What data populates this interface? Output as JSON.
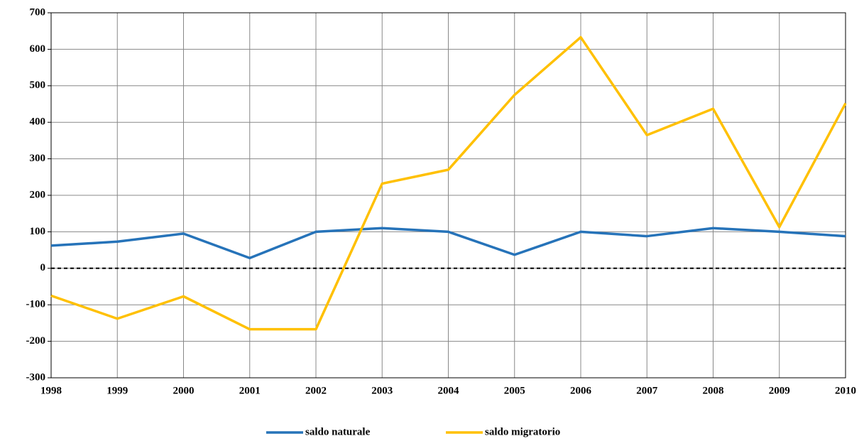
{
  "chart_data": {
    "type": "line",
    "x": [
      1998,
      1999,
      2000,
      2001,
      2002,
      2003,
      2004,
      2005,
      2006,
      2007,
      2008,
      2009,
      2010
    ],
    "series": [
      {
        "name": "saldo naturale",
        "color": "#2673b9",
        "values": [
          62,
          73,
          95,
          28,
          100,
          110,
          100,
          37,
          100,
          88,
          110,
          100,
          88
        ]
      },
      {
        "name": "saldo migratorio",
        "color": "#ffc000",
        "values": [
          -75,
          -138,
          -77,
          -167,
          -167,
          232,
          270,
          475,
          633,
          365,
          437,
          113,
          452
        ]
      }
    ],
    "xlim": [
      1998,
      2010
    ],
    "xticks": [
      1998,
      1999,
      2000,
      2001,
      2002,
      2003,
      2004,
      2005,
      2006,
      2007,
      2008,
      2009,
      2010
    ],
    "ylim": [
      -300,
      700
    ],
    "yticks": [
      -300,
      -200,
      -100,
      0,
      100,
      200,
      300,
      400,
      500,
      600,
      700
    ],
    "grid": true,
    "zero_line": true,
    "legend": "bottom"
  }
}
